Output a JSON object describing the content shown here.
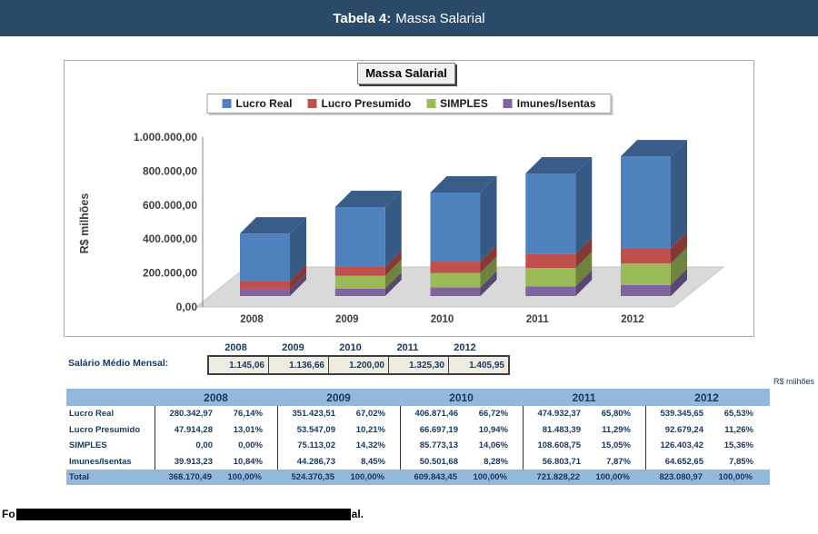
{
  "banner": {
    "title_bold": "Tabela 4:",
    "title_rest": "Massa Salarial"
  },
  "chart": {
    "title": "Massa Salarial",
    "legend": [
      {
        "label": "Lucro Real",
        "color": "#4F81BD"
      },
      {
        "label": "Lucro Presumido",
        "color": "#C0504D"
      },
      {
        "label": "SIMPLES",
        "color": "#9BBB59"
      },
      {
        "label": "Imunes/Isentas",
        "color": "#8064A2"
      }
    ]
  },
  "chart_data": {
    "type": "bar",
    "stacked": true,
    "style_3d": true,
    "title": "Massa Salarial",
    "ylabel": "R$ milhões",
    "ylim": [
      0,
      1000000
    ],
    "y_tick_labels": [
      "1.000.000,00",
      "800.000,00",
      "600.000,00",
      "400.000,00",
      "200.000,00",
      "0,00"
    ],
    "legend_position": "top",
    "grid": false,
    "categories": [
      "2008",
      "2009",
      "2010",
      "2011",
      "2012"
    ],
    "series_bottom_to_top": [
      {
        "name": "Imunes/Isentas",
        "color": "#8064A2",
        "values": [
          39913.23,
          44286.73,
          50501.68,
          56803.71,
          64652.65
        ]
      },
      {
        "name": "SIMPLES",
        "color": "#9BBB59",
        "values": [
          0,
          75113.02,
          85773.13,
          108608.75,
          126403.42
        ]
      },
      {
        "name": "Lucro Presumido",
        "color": "#C0504D",
        "values": [
          47914.28,
          53547.09,
          66697.19,
          81483.39,
          92679.24
        ]
      },
      {
        "name": "Lucro Real",
        "color": "#4F81BD",
        "values": [
          280342.97,
          351423.51,
          406871.46,
          474932.37,
          539345.65
        ]
      }
    ],
    "totals": [
      368170.49,
      524370.35,
      609843.45,
      721828.22,
      823080.97
    ]
  },
  "salary_row": {
    "label": "Salário Médio Mensal:",
    "years": [
      "2008",
      "2009",
      "2010",
      "2011",
      "2012"
    ],
    "values": [
      "1.145,06",
      "1.136,66",
      "1.200,00",
      "1.325,30",
      "1.405,95"
    ]
  },
  "main_table": {
    "unit_note": "R$ milhões",
    "years": [
      "2008",
      "2009",
      "2010",
      "2011",
      "2012"
    ],
    "rows": [
      {
        "label": "Lucro Real",
        "cells": [
          [
            "280.342,97",
            "76,14%"
          ],
          [
            "351.423,51",
            "67,02%"
          ],
          [
            "406.871,46",
            "66,72%"
          ],
          [
            "474.932,37",
            "65,80%"
          ],
          [
            "539.345,65",
            "65,53%"
          ]
        ]
      },
      {
        "label": "Lucro Presumido",
        "cells": [
          [
            "47.914,28",
            "13,01%"
          ],
          [
            "53.547,09",
            "10,21%"
          ],
          [
            "66.697,19",
            "10,94%"
          ],
          [
            "81.483,39",
            "11,29%"
          ],
          [
            "92.679,24",
            "11,26%"
          ]
        ]
      },
      {
        "label": "SIMPLES",
        "cells": [
          [
            "0,00",
            "0,00%"
          ],
          [
            "75.113,02",
            "14,32%"
          ],
          [
            "85.773,13",
            "14,06%"
          ],
          [
            "108.608,75",
            "15,05%"
          ],
          [
            "126.403,42",
            "15,36%"
          ]
        ]
      },
      {
        "label": "Imunes/Isentas",
        "cells": [
          [
            "39.913,23",
            "10,84%"
          ],
          [
            "44.286,73",
            "8,45%"
          ],
          [
            "50.501,68",
            "8,28%"
          ],
          [
            "56.803,71",
            "7,87%"
          ],
          [
            "64.652,65",
            "7,85%"
          ]
        ]
      }
    ],
    "total_row": {
      "label": "Total",
      "cells": [
        [
          "368.170,49",
          "100,00%"
        ],
        [
          "524.370,35",
          "100,00%"
        ],
        [
          "609.843,45",
          "100,00%"
        ],
        [
          "721.828,22",
          "100,00%"
        ],
        [
          "823.080,97",
          "100,00%"
        ]
      ]
    }
  },
  "footer": {
    "visible_prefix": "Fo",
    "visible_suffix": "al."
  },
  "colors": {
    "banner_bg": "#2A4A68",
    "table_header_bg": "#94B7DC",
    "salary_cell_bg": "#EEECE1",
    "chart_floor": "#D9D9D9"
  }
}
